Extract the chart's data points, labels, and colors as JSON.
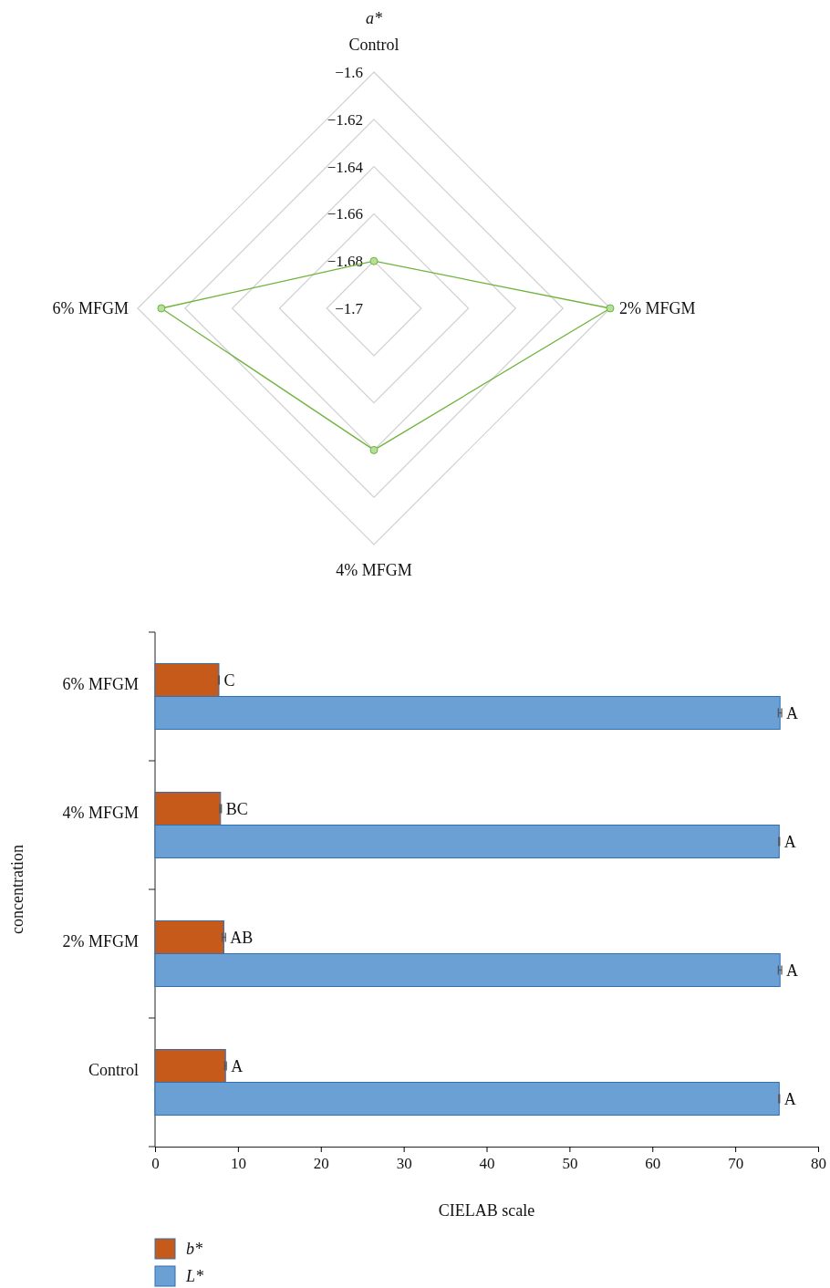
{
  "chart_data": [
    {
      "type": "radar",
      "title": "a*",
      "categories": [
        "Control",
        "2% MFGM",
        "4% MFGM",
        "6% MFGM"
      ],
      "ylim": [
        -1.7,
        -1.6
      ],
      "yticks": [
        {
          "value": -1.7,
          "label": "−1.7"
        },
        {
          "value": -1.68,
          "label": "−1.68"
        },
        {
          "value": -1.66,
          "label": "−1.66"
        },
        {
          "value": -1.64,
          "label": "−1.64"
        },
        {
          "value": -1.62,
          "label": "−1.62"
        },
        {
          "value": -1.6,
          "label": "−1.6"
        }
      ],
      "grid": true,
      "marker": "circle",
      "series": [
        {
          "color": "#70b33c",
          "values": [
            -1.68,
            -1.6,
            -1.64,
            -1.61
          ]
        }
      ]
    },
    {
      "type": "bar",
      "orientation": "horizontal",
      "categories": [
        "6% MFGM",
        "4% MFGM",
        "2% MFGM",
        "Control"
      ],
      "xlim": [
        0,
        80
      ],
      "xticks": [
        0,
        10,
        20,
        30,
        40,
        50,
        60,
        70,
        80
      ],
      "xlabel": "CIELAB scale",
      "ylabel": "concentration",
      "legend": "bottom",
      "series": [
        {
          "name": "b*",
          "color": "#c55a1a",
          "values": [
            7.7,
            7.9,
            8.3,
            8.5
          ],
          "errors": [
            0.05,
            0.1,
            0.2,
            0.1
          ],
          "value_labels": [
            "C",
            "BC",
            "AB",
            "A"
          ]
        },
        {
          "name": "L*",
          "color": "#6aa0d4",
          "values": [
            75.4,
            75.3,
            75.4,
            75.3
          ],
          "errors": [
            0.2,
            0.05,
            0.2,
            0.05
          ],
          "value_labels": [
            "A",
            "A",
            "A",
            "A"
          ]
        }
      ]
    }
  ]
}
